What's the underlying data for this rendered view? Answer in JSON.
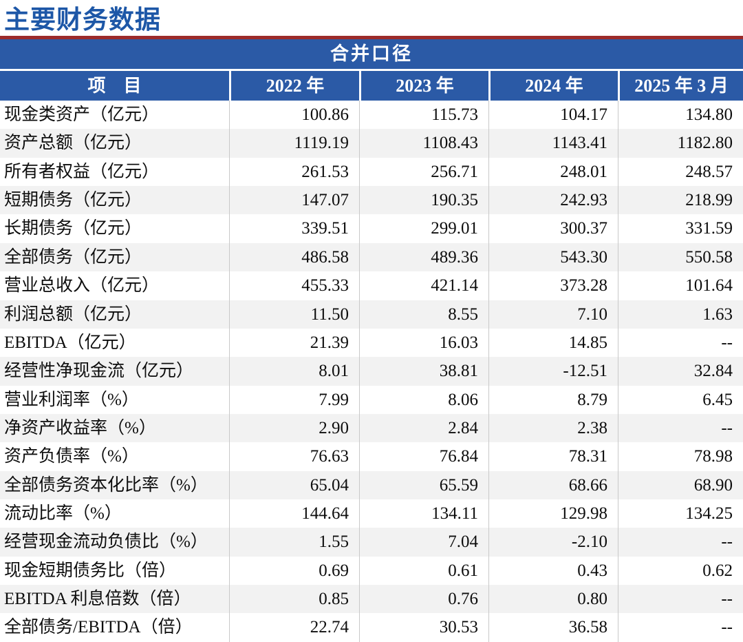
{
  "page": {
    "title": "主要财务数据"
  },
  "table": {
    "caption": "合并口径",
    "columns": [
      "项　目",
      "2022 年",
      "2023 年",
      "2024 年",
      "2025 年 3 月"
    ],
    "na_text": "--",
    "rows": [
      {
        "label": "现金类资产（亿元）",
        "values": [
          "100.86",
          "115.73",
          "104.17",
          "134.80"
        ]
      },
      {
        "label": "资产总额（亿元）",
        "values": [
          "1119.19",
          "1108.43",
          "1143.41",
          "1182.80"
        ]
      },
      {
        "label": "所有者权益（亿元）",
        "values": [
          "261.53",
          "256.71",
          "248.01",
          "248.57"
        ]
      },
      {
        "label": "短期债务（亿元）",
        "values": [
          "147.07",
          "190.35",
          "242.93",
          "218.99"
        ]
      },
      {
        "label": "长期债务（亿元）",
        "values": [
          "339.51",
          "299.01",
          "300.37",
          "331.59"
        ]
      },
      {
        "label": "全部债务（亿元）",
        "values": [
          "486.58",
          "489.36",
          "543.30",
          "550.58"
        ]
      },
      {
        "label": "营业总收入（亿元）",
        "values": [
          "455.33",
          "421.14",
          "373.28",
          "101.64"
        ]
      },
      {
        "label": "利润总额（亿元）",
        "values": [
          "11.50",
          "8.55",
          "7.10",
          "1.63"
        ]
      },
      {
        "label": "EBITDA（亿元）",
        "values": [
          "21.39",
          "16.03",
          "14.85",
          "--"
        ]
      },
      {
        "label": "经营性净现金流（亿元）",
        "values": [
          "8.01",
          "38.81",
          "-12.51",
          "32.84"
        ]
      },
      {
        "label": "营业利润率（%）",
        "values": [
          "7.99",
          "8.06",
          "8.79",
          "6.45"
        ]
      },
      {
        "label": "净资产收益率（%）",
        "values": [
          "2.90",
          "2.84",
          "2.38",
          "--"
        ]
      },
      {
        "label": "资产负债率（%）",
        "values": [
          "76.63",
          "76.84",
          "78.31",
          "78.98"
        ]
      },
      {
        "label": "全部债务资本化比率（%）",
        "values": [
          "65.04",
          "65.59",
          "68.66",
          "68.90"
        ]
      },
      {
        "label": "流动比率（%）",
        "values": [
          "144.64",
          "134.11",
          "129.98",
          "134.25"
        ]
      },
      {
        "label": "经营现金流动负债比（%）",
        "values": [
          "1.55",
          "7.04",
          "-2.10",
          "--"
        ]
      },
      {
        "label": "现金短期债务比（倍）",
        "values": [
          "0.69",
          "0.61",
          "0.43",
          "0.62"
        ]
      },
      {
        "label": "EBITDA 利息倍数（倍）",
        "values": [
          "0.85",
          "0.76",
          "0.80",
          "--"
        ]
      },
      {
        "label": "全部债务/EBITDA（倍）",
        "values": [
          "22.74",
          "30.53",
          "36.58",
          "--"
        ]
      }
    ]
  },
  "colors": {
    "title_blue": "#1d57a7",
    "header_blue": "#2b5aa6",
    "divider_red": "#9c2b2b",
    "row_alt_gray": "#f2f2f2",
    "grid_gray": "#c9c9c9"
  }
}
